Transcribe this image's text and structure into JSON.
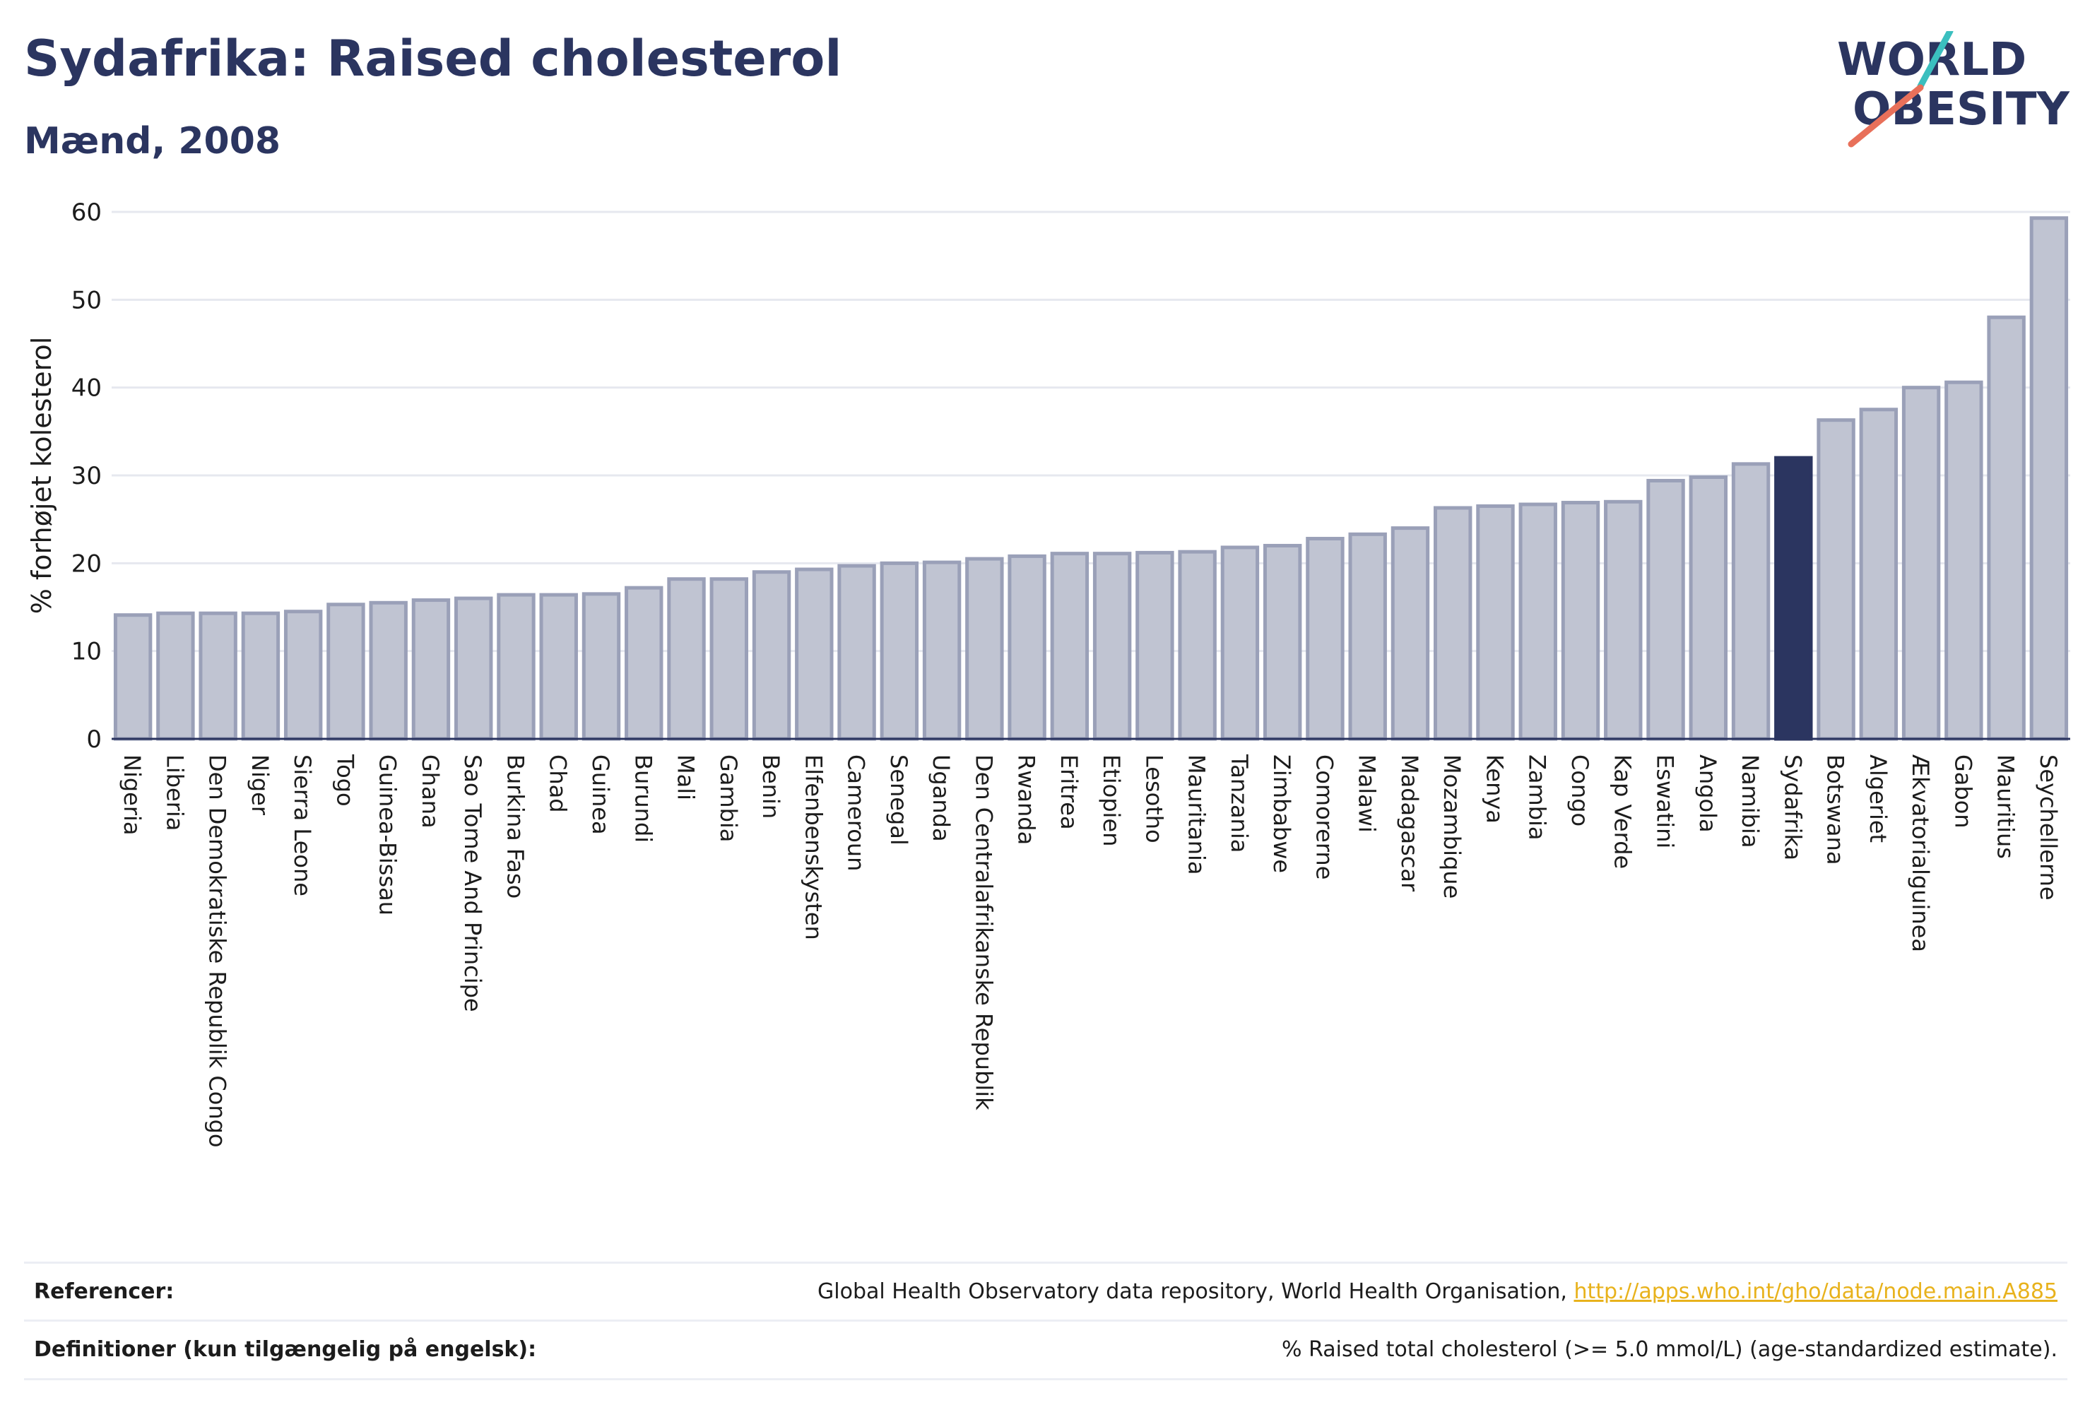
{
  "header": {
    "title": "Sydafrika: Raised cholesterol",
    "subtitle": "Mænd, 2008"
  },
  "logo": {
    "line1": "WORLD",
    "line2": "OBESITY",
    "colors": [
      "#2b3560",
      "#3bbfbf",
      "#e8705a"
    ]
  },
  "colors": {
    "bar_fill": "#c0c4d2",
    "bar_stroke": "#9aa0b8",
    "highlight": "#2b3560",
    "grid": "#e6e8ef"
  },
  "chart_data": {
    "type": "bar",
    "ylabel": "% forhøjet kolesterol",
    "ylim": [
      0,
      60
    ],
    "yticks": [
      0,
      10,
      20,
      30,
      40,
      50,
      60
    ],
    "highlight": "Sydafrika",
    "categories": [
      "Nigeria",
      "Liberia",
      "Den Demokratiske Republik Congo",
      "Niger",
      "Sierra Leone",
      "Togo",
      "Guinea-Bissau",
      "Ghana",
      "Sao Tome And Principe",
      "Burkina Faso",
      "Chad",
      "Guinea",
      "Burundi",
      "Mali",
      "Gambia",
      "Benin",
      "Elfenbenskysten",
      "Cameroun",
      "Senegal",
      "Uganda",
      "Den Centralafrikanske Republik",
      "Rwanda",
      "Eritrea",
      "Etiopien",
      "Lesotho",
      "Mauritania",
      "Tanzania",
      "Zimbabwe",
      "Comorerne",
      "Malawi",
      "Madagascar",
      "Mozambique",
      "Kenya",
      "Zambia",
      "Congo",
      "Kap Verde",
      "Eswatini",
      "Angola",
      "Namibia",
      "Sydafrika",
      "Botswana",
      "Algeriet",
      "Ækvatorialguinea",
      "Gabon",
      "Mauritius",
      "Seychellerne"
    ],
    "values": [
      14.1,
      14.3,
      14.3,
      14.3,
      14.5,
      15.3,
      15.5,
      15.8,
      16.0,
      16.4,
      16.4,
      16.5,
      17.2,
      18.2,
      18.2,
      19.0,
      19.3,
      19.7,
      20.0,
      20.1,
      20.5,
      20.8,
      21.1,
      21.1,
      21.2,
      21.3,
      21.8,
      22.0,
      22.8,
      23.3,
      24.0,
      26.3,
      26.5,
      26.7,
      26.9,
      27.0,
      29.4,
      29.8,
      31.3,
      32.0,
      36.3,
      37.5,
      40.0,
      40.6,
      48.0,
      59.3
    ]
  },
  "footer": {
    "references_label": "Referencer:",
    "references_text": "Global Health Observatory data repository, World Health Organisation, ",
    "references_link": "http://apps.who.int/gho/data/node.main.A885",
    "definitions_label": "Definitioner (kun tilgængelig på engelsk):",
    "definitions_text": "% Raised total cholesterol (>= 5.0 mmol/L) (age-standardized estimate)."
  }
}
